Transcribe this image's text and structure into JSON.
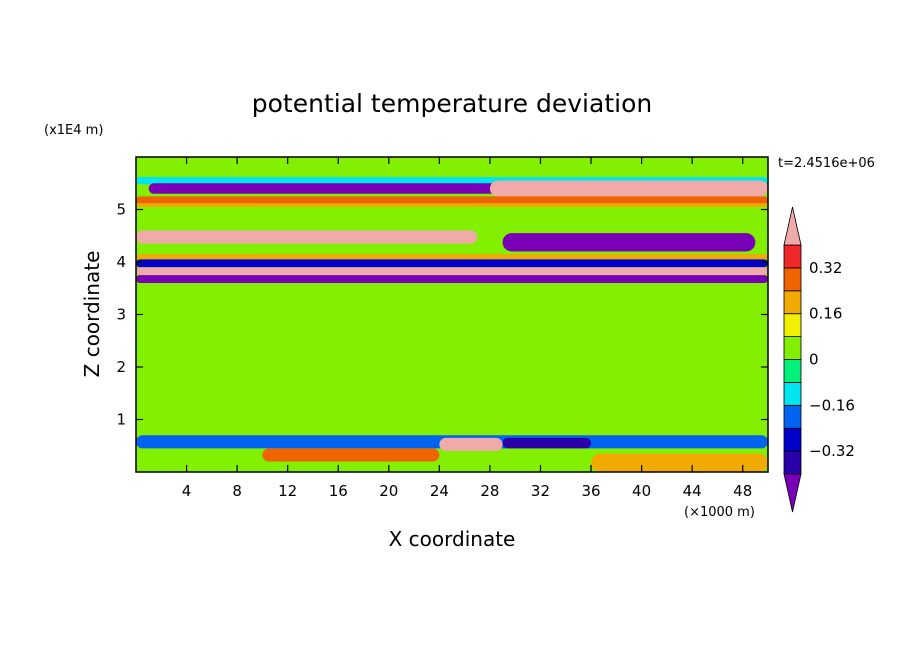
{
  "chart_data": {
    "type": "heatmap",
    "title": "potential temperature deviation",
    "xlabel": "X coordinate",
    "ylabel": "Z coordinate",
    "x_scale_label": "(×1000 m)",
    "y_scale_label": "(x1E4 m)",
    "time_label": "t=2.4516e+06",
    "xlim": [
      0,
      50
    ],
    "ylim": [
      0,
      6
    ],
    "x_ticks": [
      4,
      8,
      12,
      16,
      20,
      24,
      28,
      32,
      36,
      40,
      44,
      48
    ],
    "y_ticks": [
      1,
      2,
      3,
      4,
      5
    ],
    "colorbar": {
      "levels": [
        -0.4,
        -0.32,
        -0.24,
        -0.16,
        -0.08,
        0,
        0.08,
        0.16,
        0.24,
        0.32,
        0.4
      ],
      "tick_values": [
        0.32,
        0.16,
        0,
        -0.16,
        -0.32
      ],
      "tick_labels": [
        "0.32",
        "0.16",
        "0",
        "−0.16",
        "−0.32"
      ],
      "colors": [
        "#7a00b8",
        "#2a00a8",
        "#0000c8",
        "#0064f0",
        "#00e6f0",
        "#00f07a",
        "#82f000",
        "#f0f000",
        "#f0aa00",
        "#f06400",
        "#f02828",
        "#f0aaaa"
      ],
      "under_color": "#7a00b8",
      "over_color": "#f0aaaa"
    },
    "bands": [
      {
        "z": [
          5.48,
          5.62
        ],
        "x": [
          0,
          50
        ],
        "value": -0.1
      },
      {
        "z": [
          5.3,
          5.5
        ],
        "x": [
          1,
          30
        ],
        "value": -0.45
      },
      {
        "z": [
          5.25,
          5.55
        ],
        "x": [
          28,
          50
        ],
        "value": 0.45
      },
      {
        "z": [
          5.1,
          5.25
        ],
        "x": [
          0,
          50
        ],
        "value": 0.3
      },
      {
        "z": [
          5.05,
          5.12
        ],
        "x": [
          0,
          50
        ],
        "value": 0.2
      },
      {
        "z": [
          4.35,
          4.6
        ],
        "x": [
          0,
          27
        ],
        "value": 0.45
      },
      {
        "z": [
          4.2,
          4.55
        ],
        "x": [
          29,
          49
        ],
        "value": -0.45
      },
      {
        "z": [
          4.05,
          4.15
        ],
        "x": [
          0,
          50
        ],
        "value": 0.2
      },
      {
        "z": [
          3.9,
          4.05
        ],
        "x": [
          0,
          50
        ],
        "value": -0.3
      },
      {
        "z": [
          3.75,
          3.9
        ],
        "x": [
          0,
          50
        ],
        "value": 0.45
      },
      {
        "z": [
          3.6,
          3.75
        ],
        "x": [
          0,
          50
        ],
        "value": -0.45
      },
      {
        "z": [
          0.7,
          3.4
        ],
        "x": [
          0,
          50
        ],
        "value": 0.04
      },
      {
        "z": [
          0.45,
          0.7
        ],
        "x": [
          0,
          50
        ],
        "value": -0.2
      },
      {
        "z": [
          0.2,
          0.45
        ],
        "x": [
          10,
          24
        ],
        "value": 0.3
      },
      {
        "z": [
          0.4,
          0.65
        ],
        "x": [
          24,
          29
        ],
        "value": 0.45
      },
      {
        "z": [
          0.45,
          0.65
        ],
        "x": [
          29,
          36
        ],
        "value": -0.35
      },
      {
        "z": [
          0.0,
          0.35
        ],
        "x": [
          36,
          50
        ],
        "value": 0.2
      }
    ]
  }
}
